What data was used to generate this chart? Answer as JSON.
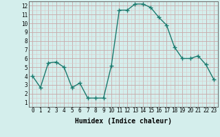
{
  "x": [
    0,
    1,
    2,
    3,
    4,
    5,
    6,
    7,
    8,
    9,
    10,
    11,
    12,
    13,
    14,
    15,
    16,
    17,
    18,
    19,
    20,
    21,
    22,
    23
  ],
  "y": [
    4.0,
    2.7,
    5.5,
    5.6,
    5.0,
    2.7,
    3.2,
    1.5,
    1.5,
    1.5,
    5.2,
    11.5,
    11.5,
    12.2,
    12.2,
    11.8,
    10.7,
    9.8,
    7.3,
    6.0,
    6.0,
    6.3,
    5.3,
    3.6
  ],
  "line_color": "#1a7a6e",
  "marker": "+",
  "marker_size": 4,
  "bg_color": "#d4eeec",
  "grid_color_major": "#c8a8a8",
  "grid_color_minor": "#dcc8c8",
  "xlabel": "Humidex (Indice chaleur)",
  "xlabel_fontsize": 7,
  "xlim": [
    -0.5,
    23.5
  ],
  "ylim": [
    0.5,
    12.5
  ],
  "yticks": [
    1,
    2,
    3,
    4,
    5,
    6,
    7,
    8,
    9,
    10,
    11,
    12
  ],
  "xticks": [
    0,
    1,
    2,
    3,
    4,
    5,
    6,
    7,
    8,
    9,
    10,
    11,
    12,
    13,
    14,
    15,
    16,
    17,
    18,
    19,
    20,
    21,
    22,
    23
  ],
  "tick_fontsize": 5.5,
  "line_width": 1.0,
  "marker_color": "#1a7a6e"
}
